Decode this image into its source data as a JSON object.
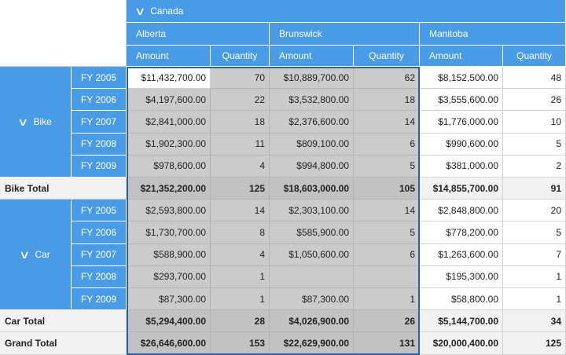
{
  "column_header": {
    "country": "Canada",
    "provinces": [
      "Alberta",
      "Brunswick",
      "Manitoba"
    ],
    "measures": [
      "Amount",
      "Quantity"
    ]
  },
  "row_groups": [
    {
      "name": "Bike",
      "years": [
        "FY 2005",
        "FY 2006",
        "FY 2007",
        "FY 2008",
        "FY 2009"
      ],
      "rows": [
        [
          "$11,432,700.00",
          "70",
          "$10,889,700.00",
          "62",
          "$8,152,500.00",
          "48"
        ],
        [
          "$4,197,600.00",
          "22",
          "$3,532,800.00",
          "18",
          "$3,555,600.00",
          "26"
        ],
        [
          "$2,841,000.00",
          "18",
          "$2,376,600.00",
          "14",
          "$1,776,000.00",
          "10"
        ],
        [
          "$1,902,300.00",
          "11",
          "$809,100.00",
          "6",
          "$990,600.00",
          "5"
        ],
        [
          "$978,600.00",
          "4",
          "$994,800.00",
          "5",
          "$381,000.00",
          "2"
        ]
      ],
      "total_label": "Bike Total",
      "total": [
        "$21,352,200.00",
        "125",
        "$18,603,000.00",
        "105",
        "$14,855,700.00",
        "91"
      ]
    },
    {
      "name": "Car",
      "years": [
        "FY 2005",
        "FY 2006",
        "FY 2007",
        "FY 2008",
        "FY 2009"
      ],
      "rows": [
        [
          "$2,593,800.00",
          "14",
          "$2,303,100.00",
          "14",
          "$2,848,800.00",
          "20"
        ],
        [
          "$1,730,700.00",
          "8",
          "$585,900.00",
          "5",
          "$778,200.00",
          "5"
        ],
        [
          "$588,900.00",
          "4",
          "$1,050,600.00",
          "6",
          "$1,263,600.00",
          "7"
        ],
        [
          "$293,700.00",
          "1",
          "",
          "",
          "$195,300.00",
          "1"
        ],
        [
          "$87,300.00",
          "1",
          "$87,300.00",
          "1",
          "$58,800.00",
          "1"
        ]
      ],
      "total_label": "Car Total",
      "total": [
        "$5,294,400.00",
        "28",
        "$4,026,900.00",
        "26",
        "$5,144,700.00",
        "34"
      ]
    }
  ],
  "grand_total": {
    "label": "Grand Total",
    "values": [
      "$26,646,600.00",
      "153",
      "$22,629,900.00",
      "131",
      "$20,000,400.00",
      "125"
    ]
  },
  "colors": {
    "header": "#4a9be6",
    "selection": "#cbcbcb",
    "selection_border": "#2b5fa8"
  }
}
